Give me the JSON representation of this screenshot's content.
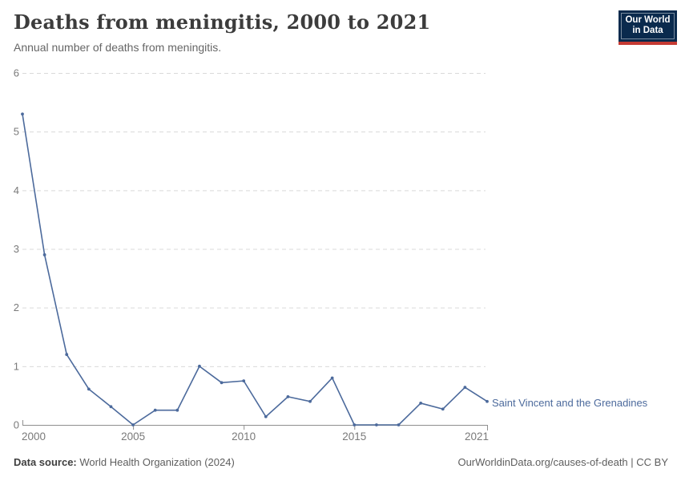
{
  "header": {
    "title": "Deaths from meningitis, 2000 to 2021",
    "subtitle": "Annual number of deaths from meningitis.",
    "logo": {
      "line1": "Our World",
      "line2": "in Data",
      "bg_color": "#0A2A4D",
      "accent_color": "#C53A33"
    }
  },
  "chart_data": {
    "type": "line",
    "title": "Deaths from meningitis, 2000 to 2021",
    "subtitle": "Annual number of deaths from meningitis.",
    "xlabel": "",
    "ylabel": "",
    "xlim": [
      2000,
      2021
    ],
    "ylim": [
      0,
      6
    ],
    "xticks": [
      2000,
      2005,
      2010,
      2015,
      2021
    ],
    "yticks": [
      0,
      1,
      2,
      3,
      4,
      5,
      6
    ],
    "grid": "horizontal-dashed",
    "legend_position": "end-of-line-label",
    "series": [
      {
        "name": "Saint Vincent and the Grenadines",
        "color": "#4C6A9C",
        "x": [
          2000,
          2001,
          2002,
          2003,
          2004,
          2005,
          2006,
          2007,
          2008,
          2009,
          2010,
          2011,
          2012,
          2013,
          2014,
          2015,
          2016,
          2017,
          2018,
          2019,
          2020,
          2021
        ],
        "values": [
          5.3,
          2.9,
          1.2,
          0.61,
          0.31,
          0,
          0.25,
          0.25,
          1.0,
          0.72,
          0.75,
          0.14,
          0.48,
          0.4,
          0.8,
          0,
          0,
          0,
          0.37,
          0.27,
          0.64,
          0.4
        ]
      }
    ]
  },
  "footer": {
    "source_label": "Data source:",
    "source_value": "World Health Organization (2024)",
    "credit": "OurWorldinData.org/causes-of-death | CC BY"
  },
  "colors": {
    "line": "#4C6A9C",
    "grid": "#D9D9D9",
    "axis": "#8F8F8F",
    "tick_label": "#7A7A7A"
  }
}
